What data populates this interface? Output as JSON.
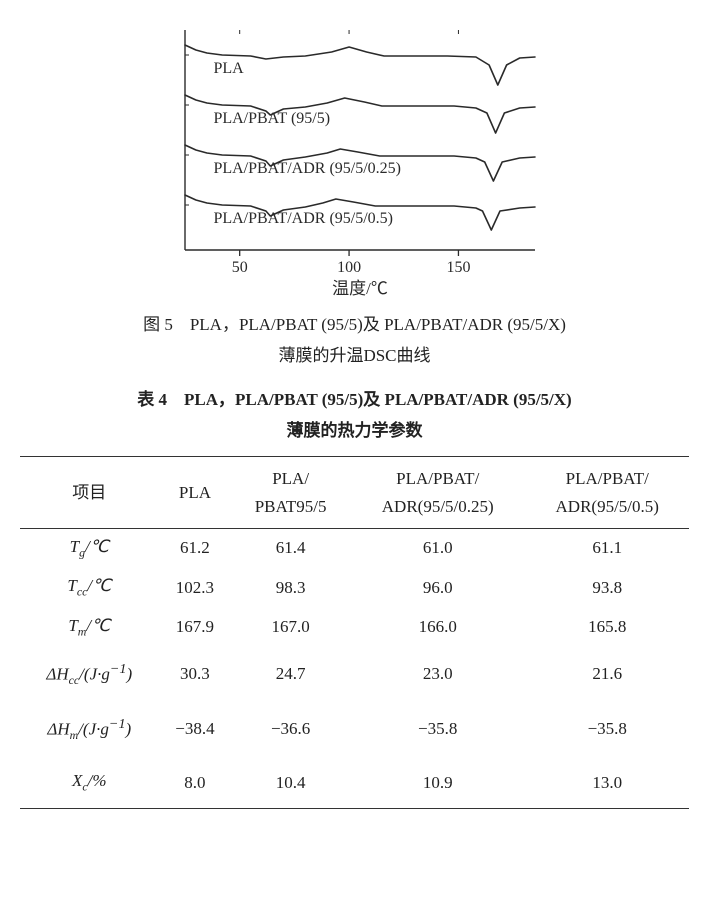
{
  "chart": {
    "type": "line",
    "xlabel": "温度/℃",
    "xticks": [
      50,
      100,
      150
    ],
    "xlim": [
      25,
      185
    ],
    "background_color": "#ffffff",
    "line_color": "#2a2a2a",
    "line_width": 1.6,
    "tick_fontsize": 16,
    "label_fontsize": 17,
    "curve_label_fontsize": 16,
    "curves": [
      {
        "label": "PLA",
        "y_offset": 0,
        "points": [
          [
            25,
            10
          ],
          [
            30,
            5
          ],
          [
            35,
            2
          ],
          [
            42,
            0
          ],
          [
            55,
            -1
          ],
          [
            62,
            -4
          ],
          [
            70,
            -2
          ],
          [
            80,
            -1
          ],
          [
            92,
            3
          ],
          [
            100,
            8
          ],
          [
            108,
            3
          ],
          [
            116,
            -1
          ],
          [
            130,
            -1
          ],
          [
            145,
            -1
          ],
          [
            158,
            -2
          ],
          [
            164,
            -10
          ],
          [
            168,
            -30
          ],
          [
            172,
            -10
          ],
          [
            178,
            -3
          ],
          [
            185,
            -2
          ]
        ]
      },
      {
        "label": "PLA/PBAT (95/5)",
        "y_offset": 50,
        "points": [
          [
            25,
            10
          ],
          [
            30,
            5
          ],
          [
            35,
            2
          ],
          [
            42,
            0
          ],
          [
            55,
            -1
          ],
          [
            62,
            -6
          ],
          [
            64,
            -10
          ],
          [
            70,
            -4
          ],
          [
            80,
            -2
          ],
          [
            90,
            2
          ],
          [
            98,
            7
          ],
          [
            107,
            3
          ],
          [
            115,
            -1
          ],
          [
            130,
            -1
          ],
          [
            148,
            -1
          ],
          [
            158,
            -3
          ],
          [
            163,
            -8
          ],
          [
            167,
            -28
          ],
          [
            171,
            -8
          ],
          [
            178,
            -3
          ],
          [
            185,
            -2
          ]
        ]
      },
      {
        "label": "PLA/PBAT/ADR (95/5/0.25)",
        "y_offset": 100,
        "points": [
          [
            25,
            10
          ],
          [
            30,
            5
          ],
          [
            35,
            2
          ],
          [
            42,
            0
          ],
          [
            55,
            -1
          ],
          [
            62,
            -6
          ],
          [
            64,
            -11
          ],
          [
            70,
            -5
          ],
          [
            80,
            -2
          ],
          [
            90,
            2
          ],
          [
            96,
            6
          ],
          [
            104,
            3
          ],
          [
            114,
            -1
          ],
          [
            130,
            -1
          ],
          [
            148,
            -1
          ],
          [
            158,
            -3
          ],
          [
            162,
            -7
          ],
          [
            166,
            -26
          ],
          [
            170,
            -7
          ],
          [
            178,
            -3
          ],
          [
            185,
            -2
          ]
        ]
      },
      {
        "label": "PLA/PBAT/ADR (95/5/0.5)",
        "y_offset": 150,
        "points": [
          [
            25,
            10
          ],
          [
            30,
            5
          ],
          [
            35,
            2
          ],
          [
            42,
            0
          ],
          [
            55,
            -1
          ],
          [
            62,
            -6
          ],
          [
            64,
            -11
          ],
          [
            70,
            -5
          ],
          [
            80,
            -2
          ],
          [
            88,
            2
          ],
          [
            94,
            6
          ],
          [
            102,
            3
          ],
          [
            112,
            -1
          ],
          [
            130,
            -1
          ],
          [
            148,
            -1
          ],
          [
            158,
            -3
          ],
          [
            161,
            -6
          ],
          [
            165,
            -25
          ],
          [
            169,
            -6
          ],
          [
            178,
            -3
          ],
          [
            185,
            -2
          ]
        ]
      }
    ]
  },
  "fig_caption_line1": "图 5　PLA，PLA/PBAT (95/5)及 PLA/PBAT/ADR (95/5/X)",
  "fig_caption_line2": "薄膜的升温DSC曲线",
  "table_title_line1": "表 4　PLA，PLA/PBAT (95/5)及 PLA/PBAT/ADR (95/5/X)",
  "table_title_line2": "薄膜的热力学参数",
  "table": {
    "header_item": "项目",
    "columns": [
      "PLA",
      "PLA/\nPBAT95/5",
      "PLA/PBAT/\nADR(95/5/0.25)",
      "PLA/PBAT/\nADR(95/5/0.5)"
    ],
    "rows": [
      {
        "label_html": "<i>T</i><sub>g</sub>/℃",
        "vals": [
          "61.2",
          "61.4",
          "61.0",
          "61.1"
        ],
        "gap": false
      },
      {
        "label_html": "<i>T</i><sub>cc</sub>/℃",
        "vals": [
          "102.3",
          "98.3",
          "96.0",
          "93.8"
        ],
        "gap": false
      },
      {
        "label_html": "<i>T</i><sub>m</sub>/℃",
        "vals": [
          "167.9",
          "167.0",
          "166.0",
          "165.8"
        ],
        "gap": false
      },
      {
        "label_html": "Δ<i>H</i><sub>cc</sub>/(J·g<sup>−1</sup>)",
        "vals": [
          "30.3",
          "24.7",
          "23.0",
          "21.6"
        ],
        "gap": true
      },
      {
        "label_html": "Δ<i>H</i><sub>m</sub>/(J·g<sup>−1</sup>)",
        "vals": [
          "−38.4",
          "−36.6",
          "−35.8",
          "−35.8"
        ],
        "gap": true
      },
      {
        "label_html": "<i>X</i><sub>c</sub>/%",
        "vals": [
          "8.0",
          "10.4",
          "10.9",
          "13.0"
        ],
        "gap": true
      }
    ]
  }
}
